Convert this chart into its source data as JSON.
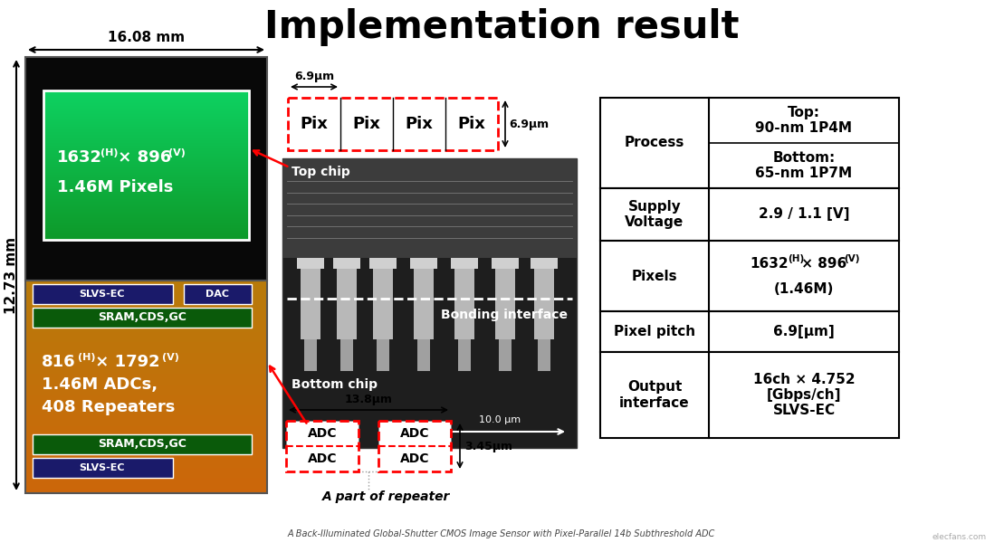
{
  "title": "Implementation result",
  "title_fontsize": 30,
  "subtitle": "A Back-Illuminated Global-Shutter CMOS Image Sensor with Pixel-Parallel 14b Subthreshold ADC",
  "bg_color": "#ffffff",
  "chip_width_label": "16.08 mm",
  "chip_height_label": "12.73 mm",
  "pix_label": "6.9μm",
  "pix_height_label": "6.9μm",
  "adc_width_label": "13.8μm",
  "adc_height_label": "3.45μm",
  "scale_bar_label": "10.0 μm",
  "top_chip_label": "Top chip",
  "bottom_chip_label": "Bottom chip",
  "bonding_label": "Bonding interface",
  "repeater_label": "A part of repeater",
  "watermark": "elecfans.com"
}
